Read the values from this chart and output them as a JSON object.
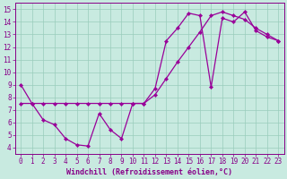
{
  "bg_color": "#c8eae0",
  "line_color": "#990099",
  "xlim": [
    -0.5,
    23.5
  ],
  "ylim": [
    3.5,
    15.5
  ],
  "xticks": [
    0,
    1,
    2,
    3,
    4,
    5,
    6,
    7,
    8,
    9,
    10,
    11,
    12,
    13,
    14,
    15,
    16,
    17,
    18,
    19,
    20,
    21,
    22,
    23
  ],
  "yticks": [
    4,
    5,
    6,
    7,
    8,
    9,
    10,
    11,
    12,
    13,
    14,
    15
  ],
  "s1_x": [
    0,
    1,
    2,
    3,
    4,
    5,
    6,
    7,
    8,
    9,
    10,
    11,
    12,
    13,
    14,
    15,
    16,
    17,
    18,
    19,
    20,
    21,
    22,
    23
  ],
  "s1_y": [
    9.0,
    7.5,
    6.2,
    5.8,
    4.7,
    4.2,
    4.1,
    6.7,
    5.4,
    4.7,
    7.5,
    7.5,
    8.7,
    12.5,
    13.5,
    14.7,
    14.5,
    8.8,
    14.3,
    14.0,
    14.8,
    13.3,
    12.8,
    12.5
  ],
  "s2_x": [
    0,
    1,
    2,
    3,
    4,
    5,
    6,
    7,
    8,
    9,
    10,
    11,
    12,
    13,
    14,
    15,
    16,
    17,
    18,
    19,
    20,
    21,
    22,
    23
  ],
  "s2_y": [
    7.5,
    7.5,
    7.5,
    7.5,
    7.5,
    7.5,
    7.5,
    7.5,
    7.5,
    7.5,
    7.5,
    7.5,
    8.2,
    9.5,
    10.8,
    12.0,
    13.2,
    14.5,
    14.8,
    14.5,
    14.2,
    13.5,
    13.0,
    12.5
  ],
  "grid_color": "#99ccbb",
  "font_color": "#880088",
  "tick_fontsize": 5.5,
  "xlabel": "Windchill (Refroidissement éolien,°C)",
  "xlabel_fontsize": 6.0
}
